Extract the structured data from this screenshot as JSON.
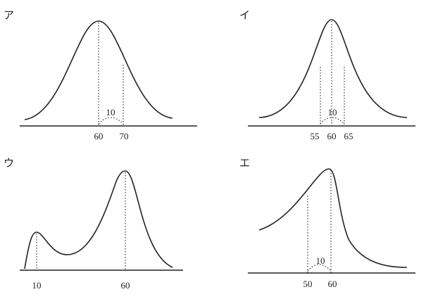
{
  "panels": [
    {
      "label": "ア",
      "annotation": "10",
      "ticks": [
        "60",
        "70"
      ]
    },
    {
      "label": "イ",
      "annotation": "10",
      "ticks": [
        "55",
        "60",
        "65"
      ]
    },
    {
      "label": "ウ",
      "ticks": [
        "10",
        "60"
      ]
    },
    {
      "label": "エ",
      "annotation": "10",
      "ticks": [
        "50",
        "60"
      ]
    }
  ]
}
